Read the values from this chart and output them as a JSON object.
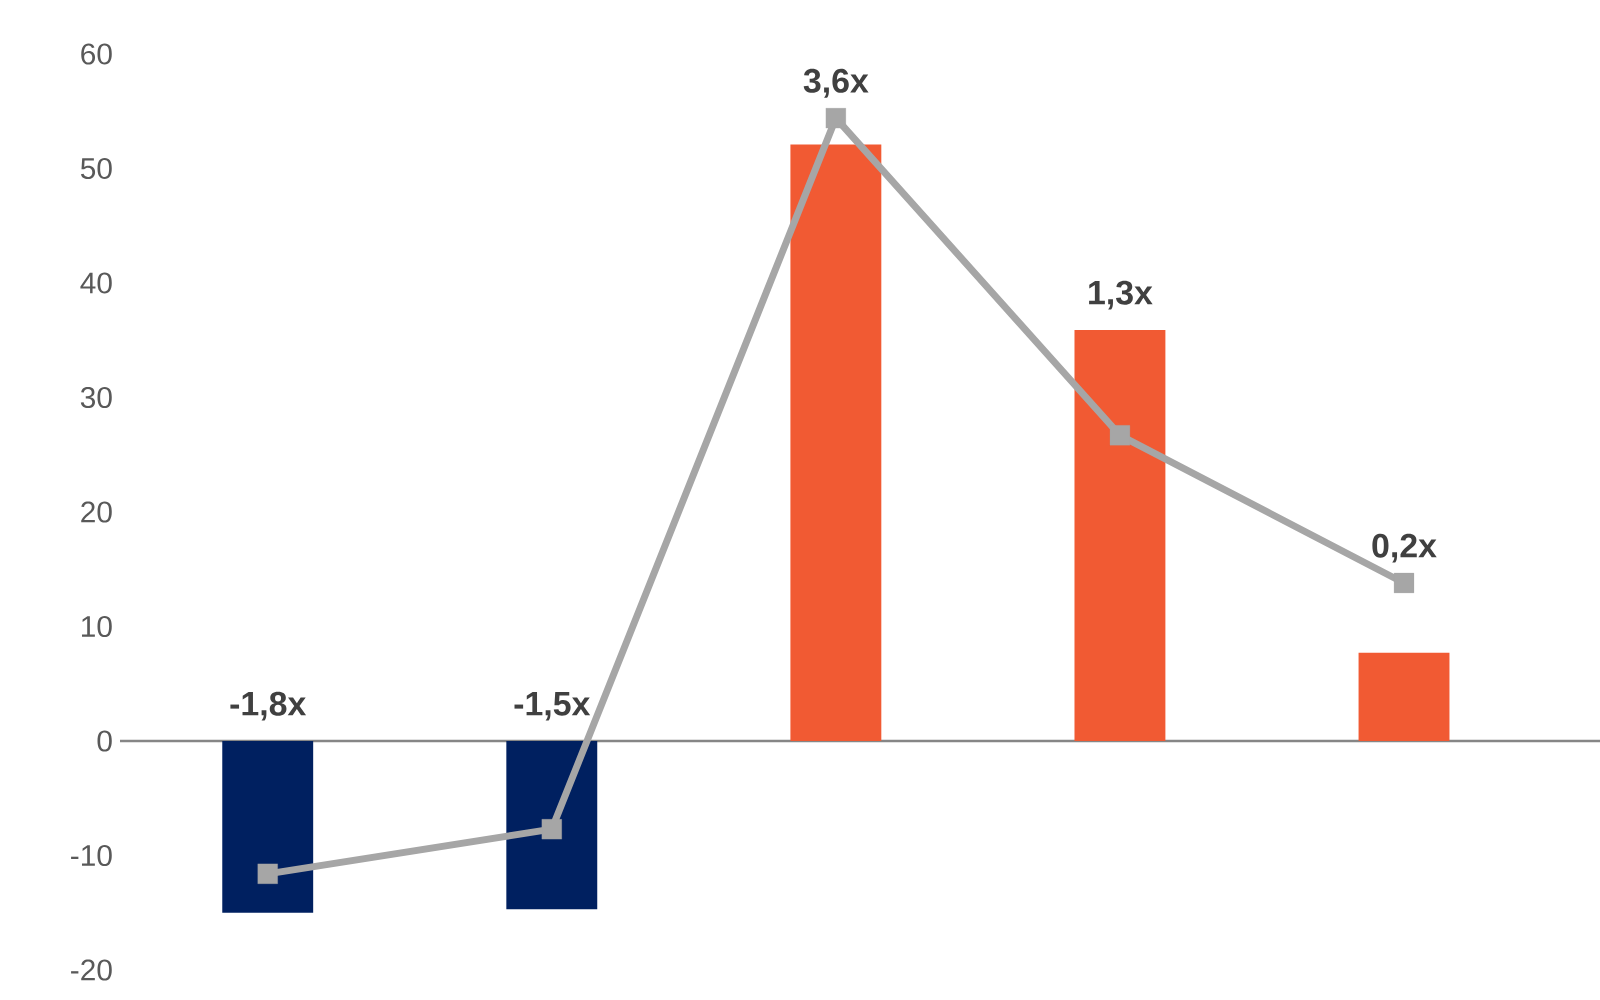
{
  "chart_data": {
    "type": "bar",
    "categories": [
      null,
      null,
      null,
      null,
      null
    ],
    "series": [
      {
        "colors": [
          "#002060",
          "#002060",
          "#f15a33",
          "#f15a33",
          "#f15a33"
        ],
        "values": [
          -15.0,
          -14.7,
          52.1,
          35.9,
          7.7
        ]
      },
      {
        "type": "line",
        "color": "#a6a6a6",
        "marker": "square",
        "values": [
          -11.6,
          -7.7,
          54.4,
          26.7,
          13.8
        ]
      }
    ],
    "annotations": [
      "-1,8x",
      "-1,5x",
      "3,6x",
      "1,3x",
      "0,2x"
    ],
    "ylim": [
      -20,
      60
    ],
    "yticks": [
      -20,
      -10,
      0,
      10,
      20,
      30,
      40,
      50,
      60
    ],
    "tick_labels": "y"
  }
}
